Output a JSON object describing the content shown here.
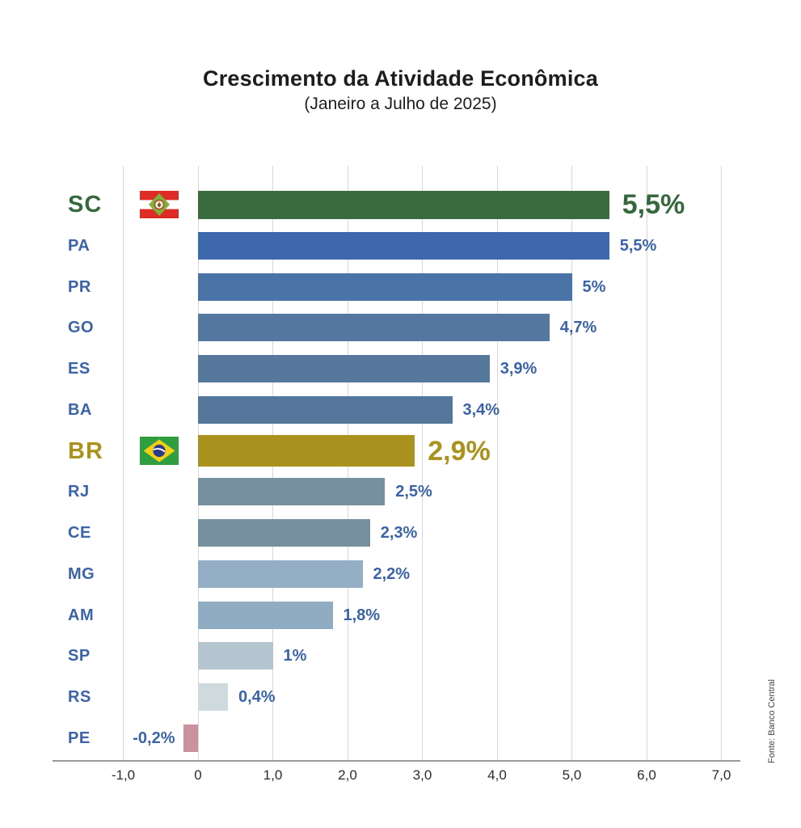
{
  "title": "Crescimento da Atividade Econômica",
  "subtitle": "(Janeiro a Julho de 2025)",
  "source": "Fonte: Banco Central",
  "chart_data": {
    "type": "bar",
    "orientation": "horizontal",
    "title": "Crescimento da Atividade Econômica",
    "subtitle": "(Janeiro a Julho de 2025)",
    "xlabel": "",
    "ylabel": "",
    "xlim": [
      -1.95,
      7.25
    ],
    "grid": true,
    "x_ticks": [
      {
        "label": "-1,0",
        "value": -1
      },
      {
        "label": "0",
        "value": 0
      },
      {
        "label": "1,0",
        "value": 1
      },
      {
        "label": "2,0",
        "value": 2
      },
      {
        "label": "3,0",
        "value": 3
      },
      {
        "label": "4,0",
        "value": 4
      },
      {
        "label": "5,0",
        "value": 5
      },
      {
        "label": "6,0",
        "value": 6
      },
      {
        "label": "7,0",
        "value": 7
      }
    ],
    "categories": [
      "SC",
      "PA",
      "PR",
      "GO",
      "ES",
      "BA",
      "BR",
      "RJ",
      "CE",
      "MG",
      "AM",
      "SP",
      "RS",
      "PE"
    ],
    "values": [
      5.5,
      5.5,
      5,
      4.7,
      3.9,
      3.4,
      2.9,
      2.5,
      2.3,
      2.2,
      1.8,
      1,
      0.4,
      -0.2
    ],
    "bars": [
      {
        "state": "SC",
        "value": 5.5,
        "value_label": "5,5%",
        "bar_color": "#3a6b3e",
        "text_color": "#35693d",
        "emphasis": true,
        "flag": "santa-catarina-flag-icon"
      },
      {
        "state": "PA",
        "value": 5.5,
        "value_label": "5,5%",
        "bar_color": "#3e68ae",
        "text_color": "#3a63a8",
        "emphasis": false,
        "flag": null
      },
      {
        "state": "PR",
        "value": 5,
        "value_label": "5%",
        "bar_color": "#4a73a8",
        "text_color": "#3a63a8",
        "emphasis": false,
        "flag": null
      },
      {
        "state": "GO",
        "value": 4.7,
        "value_label": "4,7%",
        "bar_color": "#54789f",
        "text_color": "#3a63a8",
        "emphasis": false,
        "flag": null
      },
      {
        "state": "ES",
        "value": 3.9,
        "value_label": "3,9%",
        "bar_color": "#56789d",
        "text_color": "#3a63a8",
        "emphasis": false,
        "flag": null
      },
      {
        "state": "BA",
        "value": 3.4,
        "value_label": "3,4%",
        "bar_color": "#55779b",
        "text_color": "#3a63a8",
        "emphasis": false,
        "flag": null
      },
      {
        "state": "BR",
        "value": 2.9,
        "value_label": "2,9%",
        "bar_color": "#a9921d",
        "text_color": "#a9921d",
        "emphasis": true,
        "flag": "brazil-flag-icon"
      },
      {
        "state": "RJ",
        "value": 2.5,
        "value_label": "2,5%",
        "bar_color": "#76909f",
        "text_color": "#3a63a8",
        "emphasis": false,
        "flag": null
      },
      {
        "state": "CE",
        "value": 2.3,
        "value_label": "2,3%",
        "bar_color": "#76909f",
        "text_color": "#3a63a8",
        "emphasis": false,
        "flag": null
      },
      {
        "state": "MG",
        "value": 2.2,
        "value_label": "2,2%",
        "bar_color": "#93aec5",
        "text_color": "#3a63a8",
        "emphasis": false,
        "flag": null
      },
      {
        "state": "AM",
        "value": 1.8,
        "value_label": "1,8%",
        "bar_color": "#90acc3",
        "text_color": "#3a63a8",
        "emphasis": false,
        "flag": null
      },
      {
        "state": "SP",
        "value": 1,
        "value_label": "1%",
        "bar_color": "#b4c5d0",
        "text_color": "#3a63a8",
        "emphasis": false,
        "flag": null
      },
      {
        "state": "RS",
        "value": 0.4,
        "value_label": "0,4%",
        "bar_color": "#cfdade",
        "text_color": "#3a63a8",
        "emphasis": false,
        "flag": null
      },
      {
        "state": "PE",
        "value": -0.2,
        "value_label": "-0,2%",
        "bar_color": "#c9929c",
        "text_color": "#3a63a8",
        "emphasis": false,
        "flag": null
      }
    ],
    "colors": {
      "grid": "#d8d8d8",
      "axis": "#9b9b9b",
      "title": "#1d1d1d",
      "tick": "#2c2c2c",
      "state_blue": "#3a63a8",
      "sc_green": "#35693d",
      "br_gold": "#a9921d",
      "negative_pink": "#c9929c"
    }
  }
}
